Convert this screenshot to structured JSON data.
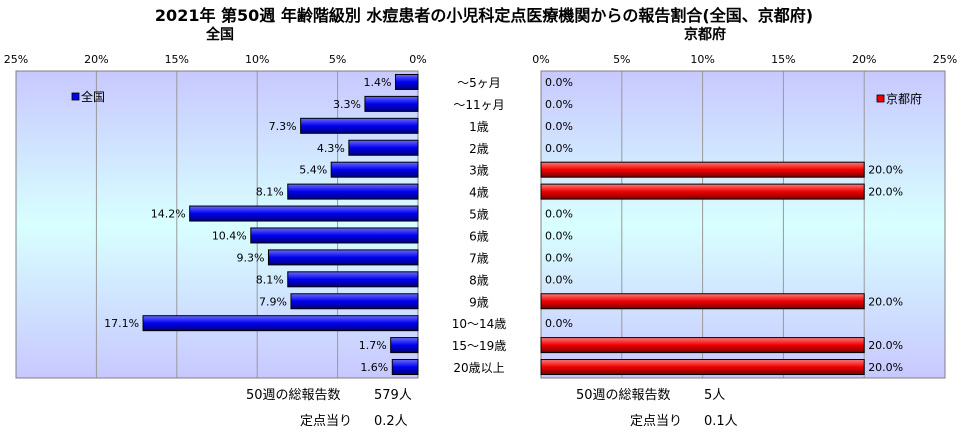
{
  "title": "2021年 第50週 年齢階級別 水痘患者の小児科定点医療機関からの報告割合(全国、京都府)",
  "colors": {
    "national_bar": "#0000ee",
    "kyoto_bar": "#ee0000",
    "plot_bg_top": "#c8c8ff",
    "plot_bg_mid": "#d8ffff",
    "grid": "#999999"
  },
  "chart_data": [
    {
      "type": "bar",
      "orientation": "horizontal",
      "direction": "right-to-left",
      "title": "全国",
      "legend": "全国",
      "legend_position": "top-left",
      "xlim": [
        0,
        25
      ],
      "x_ticks": [
        "0%",
        "5%",
        "10%",
        "15%",
        "20%",
        "25%"
      ],
      "grid": true,
      "categories": [
        "～5ヶ月",
        "～11ヶ月",
        "1歳",
        "2歳",
        "3歳",
        "4歳",
        "5歳",
        "6歳",
        "7歳",
        "8歳",
        "9歳",
        "10～14歳",
        "15～19歳",
        "20歳以上"
      ],
      "values": [
        1.4,
        3.3,
        7.3,
        4.3,
        5.4,
        8.1,
        14.2,
        10.4,
        9.3,
        8.1,
        7.9,
        17.1,
        1.7,
        1.6
      ],
      "value_labels": [
        "1.4%",
        "3.3%",
        "7.3%",
        "4.3%",
        "5.4%",
        "8.1%",
        "14.2%",
        "10.4%",
        "9.3%",
        "8.1%",
        "7.9%",
        "17.1%",
        "1.7%",
        "1.6%"
      ]
    },
    {
      "type": "bar",
      "orientation": "horizontal",
      "direction": "left-to-right",
      "title": "京都府",
      "legend": "京都府",
      "legend_position": "top-right",
      "xlim": [
        0,
        25
      ],
      "x_ticks": [
        "0%",
        "5%",
        "10%",
        "15%",
        "20%",
        "25%"
      ],
      "grid": true,
      "categories": [
        "～5ヶ月",
        "～11ヶ月",
        "1歳",
        "2歳",
        "3歳",
        "4歳",
        "5歳",
        "6歳",
        "7歳",
        "8歳",
        "9歳",
        "10～14歳",
        "15～19歳",
        "20歳以上"
      ],
      "values": [
        0,
        0,
        0,
        0,
        20,
        20,
        0,
        0,
        0,
        0,
        20,
        0,
        20,
        20
      ],
      "value_labels": [
        "0.0%",
        "0.0%",
        "0.0%",
        "0.0%",
        "20.0%",
        "20.0%",
        "0.0%",
        "0.0%",
        "0.0%",
        "0.0%",
        "20.0%",
        "0.0%",
        "20.0%",
        "20.0%"
      ]
    }
  ],
  "footer": {
    "national": {
      "total_label": "50週の総報告数",
      "total_value": "579人",
      "per_site_label": "定点当り",
      "per_site_value": "0.2人"
    },
    "kyoto": {
      "total_label": "50週の総報告数",
      "total_value": "5人",
      "per_site_label": "定点当り",
      "per_site_value": "0.1人"
    }
  }
}
